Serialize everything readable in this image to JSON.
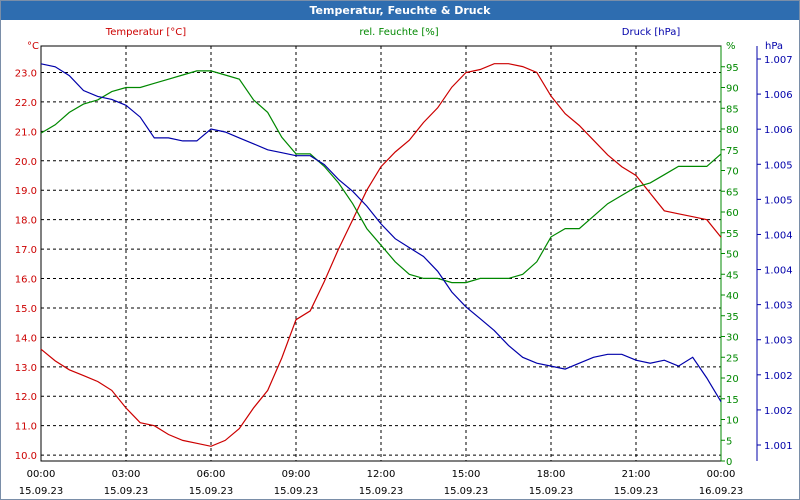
{
  "window": {
    "title": "Temperatur, Feuchte & Druck"
  },
  "colors": {
    "temperature": "#cc0000",
    "humidity": "#008800",
    "pressure": "#0000aa",
    "grid": "#000000"
  },
  "chart_data": {
    "type": "line",
    "title": "Temperatur, Feuchte & Druck",
    "grid": true,
    "x_axis": {
      "range_hours": [
        0,
        24
      ],
      "ticks": [
        {
          "time": "00:00",
          "date": "15.09.23"
        },
        {
          "time": "03:00",
          "date": "15.09.23"
        },
        {
          "time": "06:00",
          "date": "15.09.23"
        },
        {
          "time": "09:00",
          "date": "15.09.23"
        },
        {
          "time": "12:00",
          "date": "15.09.23"
        },
        {
          "time": "15:00",
          "date": "15.09.23"
        },
        {
          "time": "18:00",
          "date": "15.09.23"
        },
        {
          "time": "21:00",
          "date": "15.09.23"
        },
        {
          "time": "00:00",
          "date": "16.09.23"
        }
      ]
    },
    "axes": {
      "temperature": {
        "unit": "°C",
        "ylim": [
          9.8,
          23.9
        ],
        "ticks": [
          "10.0",
          "11.0",
          "12.0",
          "13.0",
          "14.0",
          "15.0",
          "16.0",
          "17.0",
          "18.0",
          "19.0",
          "20.0",
          "21.0",
          "22.0",
          "23.0"
        ]
      },
      "humidity": {
        "unit": "%",
        "ylim": [
          0,
          100
        ],
        "ticks": [
          "0",
          "5",
          "10",
          "15",
          "20",
          "25",
          "30",
          "35",
          "40",
          "45",
          "50",
          "55",
          "60",
          "65",
          "70",
          "75",
          "80",
          "85",
          "90",
          "95"
        ]
      },
      "pressure": {
        "unit": "hPa",
        "ylim": [
          1000.6,
          1007.6
        ],
        "ticks": [
          "1.001",
          "1.002",
          "1.002",
          "1.003",
          "1.003",
          "1.004",
          "1.004",
          "1.005",
          "1.005",
          "1.006",
          "1.006",
          "1.007"
        ]
      }
    },
    "series": [
      {
        "name": "Temperatur [°C]",
        "axis": "temperature",
        "x": [
          0,
          0.5,
          1,
          1.5,
          2,
          2.5,
          3,
          3.5,
          4,
          4.5,
          5,
          5.5,
          6,
          6.5,
          7,
          7.5,
          8,
          8.5,
          9,
          9.5,
          10,
          10.5,
          11,
          11.5,
          12,
          12.5,
          13,
          13.5,
          14,
          14.5,
          15,
          15.5,
          16,
          16.5,
          17,
          17.5,
          18,
          18.5,
          19,
          19.5,
          20,
          20.5,
          21,
          21.5,
          22,
          22.5,
          23,
          23.5,
          24
        ],
        "values": [
          13.6,
          13.2,
          12.9,
          12.7,
          12.5,
          12.2,
          11.6,
          11.1,
          11.0,
          10.7,
          10.5,
          10.4,
          10.3,
          10.5,
          10.9,
          11.6,
          12.2,
          13.3,
          14.6,
          14.9,
          15.9,
          17.0,
          18.0,
          19.0,
          19.8,
          20.3,
          20.7,
          21.3,
          21.8,
          22.5,
          23.0,
          23.1,
          23.3,
          23.3,
          23.2,
          23.0,
          22.2,
          21.6,
          21.2,
          20.7,
          20.2,
          19.8,
          19.5,
          18.9,
          18.3,
          18.2,
          18.1,
          18.0,
          17.4
        ]
      },
      {
        "name": "rel. Feuchte [%]",
        "axis": "humidity",
        "x": [
          0,
          0.5,
          1,
          1.5,
          2,
          2.5,
          3,
          3.5,
          4,
          4.5,
          5,
          5.5,
          6,
          6.5,
          7,
          7.5,
          8,
          8.5,
          9,
          9.5,
          10,
          10.5,
          11,
          11.5,
          12,
          12.5,
          13,
          13.5,
          14,
          14.5,
          15,
          15.5,
          16,
          16.5,
          17,
          17.5,
          18,
          18.5,
          19,
          19.5,
          20,
          20.5,
          21,
          21.5,
          22,
          22.5,
          23,
          23.5,
          24
        ],
        "values": [
          79,
          81,
          84,
          86,
          87,
          89,
          90,
          90,
          91,
          92,
          93,
          94,
          94,
          93,
          92,
          87,
          84,
          78,
          74,
          74,
          71,
          67,
          62,
          56,
          52,
          48,
          45,
          44,
          44,
          43,
          43,
          44,
          44,
          44,
          45,
          48,
          54,
          56,
          56,
          59,
          62,
          64,
          66,
          67,
          69,
          71,
          71,
          71,
          74
        ]
      },
      {
        "name": "Druck [hPa]",
        "axis": "pressure",
        "x": [
          0,
          0.5,
          1,
          1.5,
          2,
          2.5,
          3,
          3.5,
          4,
          4.5,
          5,
          5.5,
          6,
          6.5,
          7,
          7.5,
          8,
          8.5,
          9,
          9.5,
          10,
          10.5,
          11,
          11.5,
          12,
          12.5,
          13,
          13.5,
          14,
          14.5,
          15,
          15.5,
          16,
          16.5,
          17,
          17.5,
          18,
          18.5,
          19,
          19.5,
          20,
          20.5,
          21,
          21.5,
          22,
          22.5,
          23,
          23.5,
          24
        ],
        "values": [
          1007.3,
          1007.25,
          1007.1,
          1006.85,
          1006.75,
          1006.7,
          1006.6,
          1006.4,
          1006.05,
          1006.05,
          1006.0,
          1006.0,
          1006.2,
          1006.15,
          1006.05,
          1005.95,
          1005.85,
          1005.8,
          1005.75,
          1005.75,
          1005.6,
          1005.35,
          1005.15,
          1004.9,
          1004.6,
          1004.35,
          1004.2,
          1004.05,
          1003.8,
          1003.45,
          1003.2,
          1003.0,
          1002.8,
          1002.55,
          1002.35,
          1002.25,
          1002.2,
          1002.15,
          1002.25,
          1002.35,
          1002.4,
          1002.4,
          1002.3,
          1002.25,
          1002.3,
          1002.2,
          1002.35,
          1002.0,
          1001.6
        ]
      }
    ]
  }
}
